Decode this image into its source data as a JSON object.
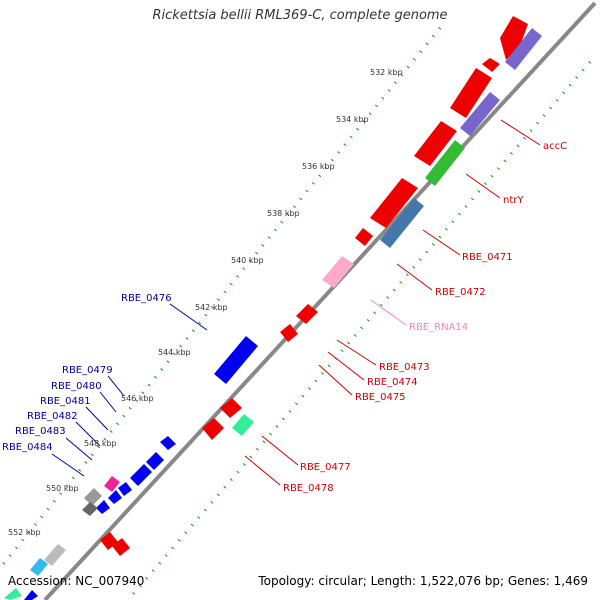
{
  "title": "Rickettsia bellii RML369-C, complete genome",
  "footer": {
    "accession": "Accession: NC_007940",
    "summary": "Topology: circular; Length: 1,522,076 bp; Genes: 1,469"
  },
  "colors": {
    "backbone": "#888888",
    "tick": "#009900",
    "forward_label": "#cc0000",
    "reverse_label": "#000099",
    "rna_label": "#ee88bb"
  },
  "kbp_marks": [
    "532 kbp",
    "534 kbp",
    "536 kbp",
    "538 kbp",
    "540 kbp",
    "542 kbp",
    "544 kbp",
    "546 kbp",
    "548 kbp",
    "550 kbp",
    "552 kbp"
  ],
  "gene_labels": [
    {
      "text": "accC",
      "strand": "forward"
    },
    {
      "text": "ntrY",
      "strand": "forward"
    },
    {
      "text": "RBE_0471",
      "strand": "forward"
    },
    {
      "text": "RBE_0472",
      "strand": "forward"
    },
    {
      "text": "RBE_RNA14",
      "strand": "rna"
    },
    {
      "text": "RBE_0473",
      "strand": "forward"
    },
    {
      "text": "RBE_0474",
      "strand": "forward"
    },
    {
      "text": "RBE_0475",
      "strand": "forward"
    },
    {
      "text": "RBE_0477",
      "strand": "forward"
    },
    {
      "text": "RBE_0478",
      "strand": "forward"
    },
    {
      "text": "RBE_0476",
      "strand": "reverse"
    },
    {
      "text": "RBE_0479",
      "strand": "reverse"
    },
    {
      "text": "RBE_0480",
      "strand": "reverse"
    },
    {
      "text": "RBE_0481",
      "strand": "reverse"
    },
    {
      "text": "RBE_0482",
      "strand": "reverse"
    },
    {
      "text": "RBE_0483",
      "strand": "reverse"
    },
    {
      "text": "RBE_0484",
      "strand": "reverse"
    }
  ]
}
